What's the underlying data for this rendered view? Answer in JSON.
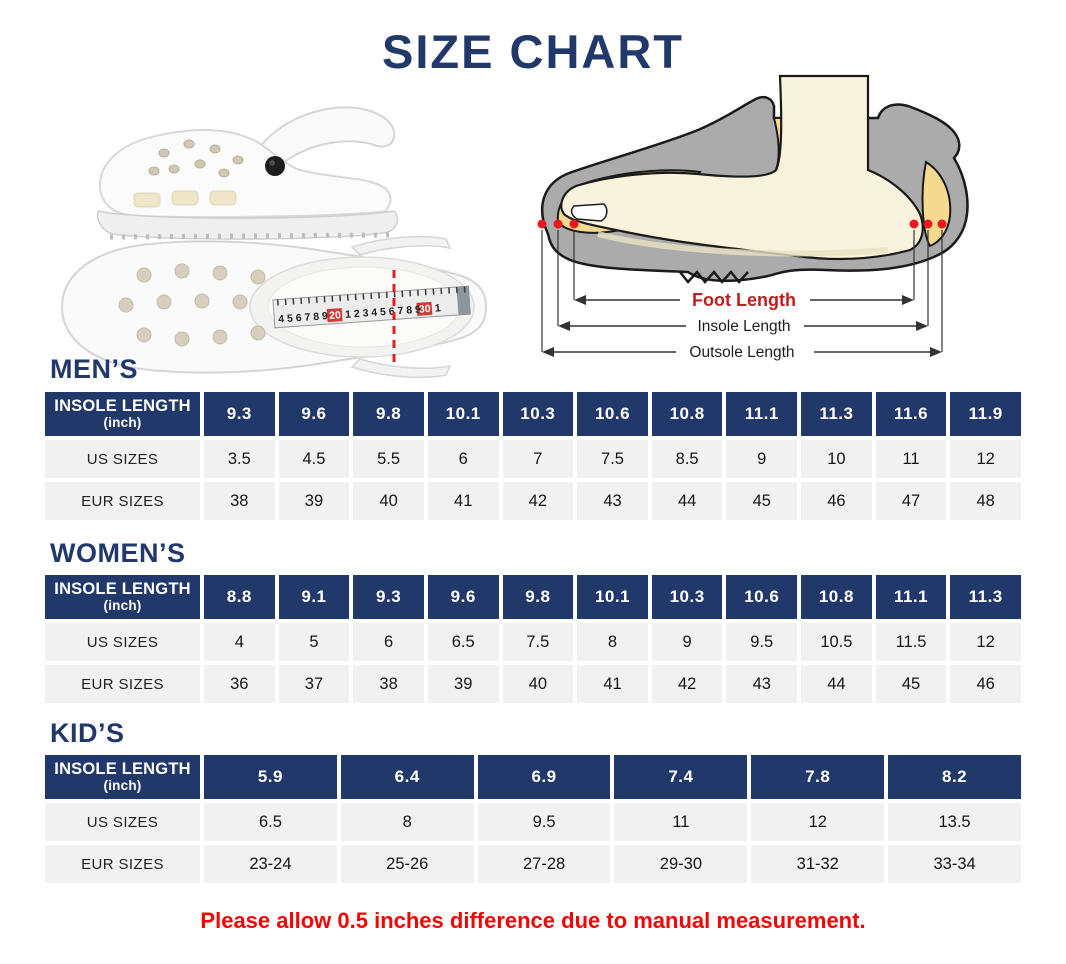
{
  "title": "SIZE CHART",
  "note": "Please allow 0.5 inches difference due to manual measurement.",
  "colors": {
    "navy": "#21386b",
    "red": "#f40505",
    "foot_red": "#c21d20",
    "cell_gray": "#f1f1f2"
  },
  "diagram": {
    "foot_length_label": "Foot Length",
    "insole_length_label": "Insole Length",
    "outsole_length_label": "Outsole Length"
  },
  "tape": {
    "seg_a": "4 5 6 7 8 9",
    "seg_20": "20",
    "seg_b": "1 2 3 4 5 6 7 8 9",
    "seg_30": "30",
    "seg_c": "1"
  },
  "tables": [
    {
      "section": "MEN’S",
      "row_labels": {
        "insole_line1": "INSOLE LENGTH",
        "insole_line2": "(inch)",
        "us": "US SIZES",
        "eur": "EUR SIZES"
      },
      "insole": [
        "9.3",
        "9.6",
        "9.8",
        "10.1",
        "10.3",
        "10.6",
        "10.8",
        "11.1",
        "11.3",
        "11.6",
        "11.9"
      ],
      "us": [
        "3.5",
        "4.5",
        "5.5",
        "6",
        "7",
        "7.5",
        "8.5",
        "9",
        "10",
        "11",
        "12"
      ],
      "eur": [
        "38",
        "39",
        "40",
        "41",
        "42",
        "43",
        "44",
        "45",
        "46",
        "47",
        "48"
      ]
    },
    {
      "section": "WOMEN’S",
      "row_labels": {
        "insole_line1": "INSOLE LENGTH",
        "insole_line2": "(inch)",
        "us": "US SIZES",
        "eur": "EUR SIZES"
      },
      "insole": [
        "8.8",
        "9.1",
        "9.3",
        "9.6",
        "9.8",
        "10.1",
        "10.3",
        "10.6",
        "10.8",
        "11.1",
        "11.3"
      ],
      "us": [
        "4",
        "5",
        "6",
        "6.5",
        "7.5",
        "8",
        "9",
        "9.5",
        "10.5",
        "11.5",
        "12"
      ],
      "eur": [
        "36",
        "37",
        "38",
        "39",
        "40",
        "41",
        "42",
        "43",
        "44",
        "45",
        "46"
      ]
    },
    {
      "section": "KID’S",
      "row_labels": {
        "insole_line1": "INSOLE LENGTH",
        "insole_line2": "(inch)",
        "us": "US SIZES",
        "eur": "EUR SIZES"
      },
      "insole": [
        "5.9",
        "6.4",
        "6.9",
        "7.4",
        "7.8",
        "8.2"
      ],
      "us": [
        "6.5",
        "8",
        "9.5",
        "11",
        "12",
        "13.5"
      ],
      "eur": [
        "23-24",
        "25-26",
        "27-28",
        "29-30",
        "31-32",
        "33-34"
      ]
    }
  ]
}
